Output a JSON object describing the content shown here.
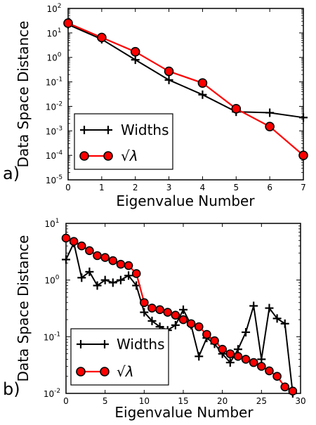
{
  "chart_data": [
    {
      "panel_label": "a)",
      "type": "line",
      "xlabel": "Eigenvalue Number",
      "ylabel": "Data Space Distance",
      "yscale": "log",
      "xlim": [
        0,
        7
      ],
      "ylim": [
        1e-05,
        100
      ],
      "x_ticks": [
        0,
        1,
        2,
        3,
        4,
        5,
        6,
        7
      ],
      "y_ticks": [
        -5,
        -4,
        -3,
        -2,
        -1,
        0,
        1,
        2
      ],
      "legend": "bottom-left",
      "grid": false,
      "series": [
        {
          "name": "Widths",
          "color": "#000000",
          "marker": "plus",
          "x": [
            0,
            1,
            2,
            3,
            4,
            5,
            6,
            7
          ],
          "y": [
            22,
            5.5,
            0.8,
            0.12,
            0.03,
            0.006,
            0.0055,
            0.0035
          ]
        },
        {
          "name": "√λ",
          "color": "#ff0000",
          "marker": "circle",
          "x": [
            0,
            1,
            2,
            3,
            4,
            5,
            6,
            7
          ],
          "y": [
            25,
            6.5,
            1.7,
            0.27,
            0.09,
            0.008,
            0.0015,
            0.0001
          ]
        }
      ]
    },
    {
      "panel_label": "b)",
      "type": "line",
      "xlabel": "Eigenvalue Number",
      "ylabel": "Data Space Distance",
      "yscale": "log",
      "xlim": [
        0,
        30
      ],
      "ylim": [
        0.01,
        10
      ],
      "x_ticks": [
        0,
        5,
        10,
        15,
        20,
        25,
        30
      ],
      "y_ticks": [
        -2,
        -1,
        0,
        1
      ],
      "legend": "bottom-left",
      "grid": false,
      "series": [
        {
          "name": "Widths",
          "color": "#000000",
          "marker": "plus",
          "x": [
            0,
            1,
            2,
            3,
            4,
            5,
            6,
            7,
            8,
            9,
            10,
            11,
            12,
            13,
            14,
            15,
            16,
            17,
            18,
            19,
            20,
            21,
            22,
            23,
            24,
            25,
            26,
            27,
            28,
            29
          ],
          "y": [
            2.3,
            4.5,
            1.1,
            1.4,
            0.8,
            1.0,
            0.9,
            1.0,
            1.2,
            0.8,
            0.27,
            0.19,
            0.15,
            0.13,
            0.16,
            0.3,
            0.16,
            0.045,
            0.095,
            0.075,
            0.05,
            0.035,
            0.06,
            0.12,
            0.35,
            0.04,
            0.32,
            0.21,
            0.17,
            0.01
          ]
        },
        {
          "name": "√λ",
          "color": "#ff0000",
          "marker": "circle",
          "x": [
            0,
            1,
            2,
            3,
            4,
            5,
            6,
            7,
            8,
            9,
            10,
            11,
            12,
            13,
            14,
            15,
            16,
            17,
            18,
            19,
            20,
            21,
            22,
            23,
            24,
            25,
            26,
            27,
            28,
            29
          ],
          "y": [
            5.5,
            4.8,
            4.0,
            3.3,
            2.7,
            2.5,
            2.2,
            1.9,
            1.8,
            1.3,
            0.4,
            0.32,
            0.3,
            0.27,
            0.24,
            0.2,
            0.17,
            0.15,
            0.11,
            0.085,
            0.06,
            0.05,
            0.045,
            0.04,
            0.035,
            0.03,
            0.025,
            0.02,
            0.013,
            0.011
          ]
        }
      ]
    }
  ]
}
